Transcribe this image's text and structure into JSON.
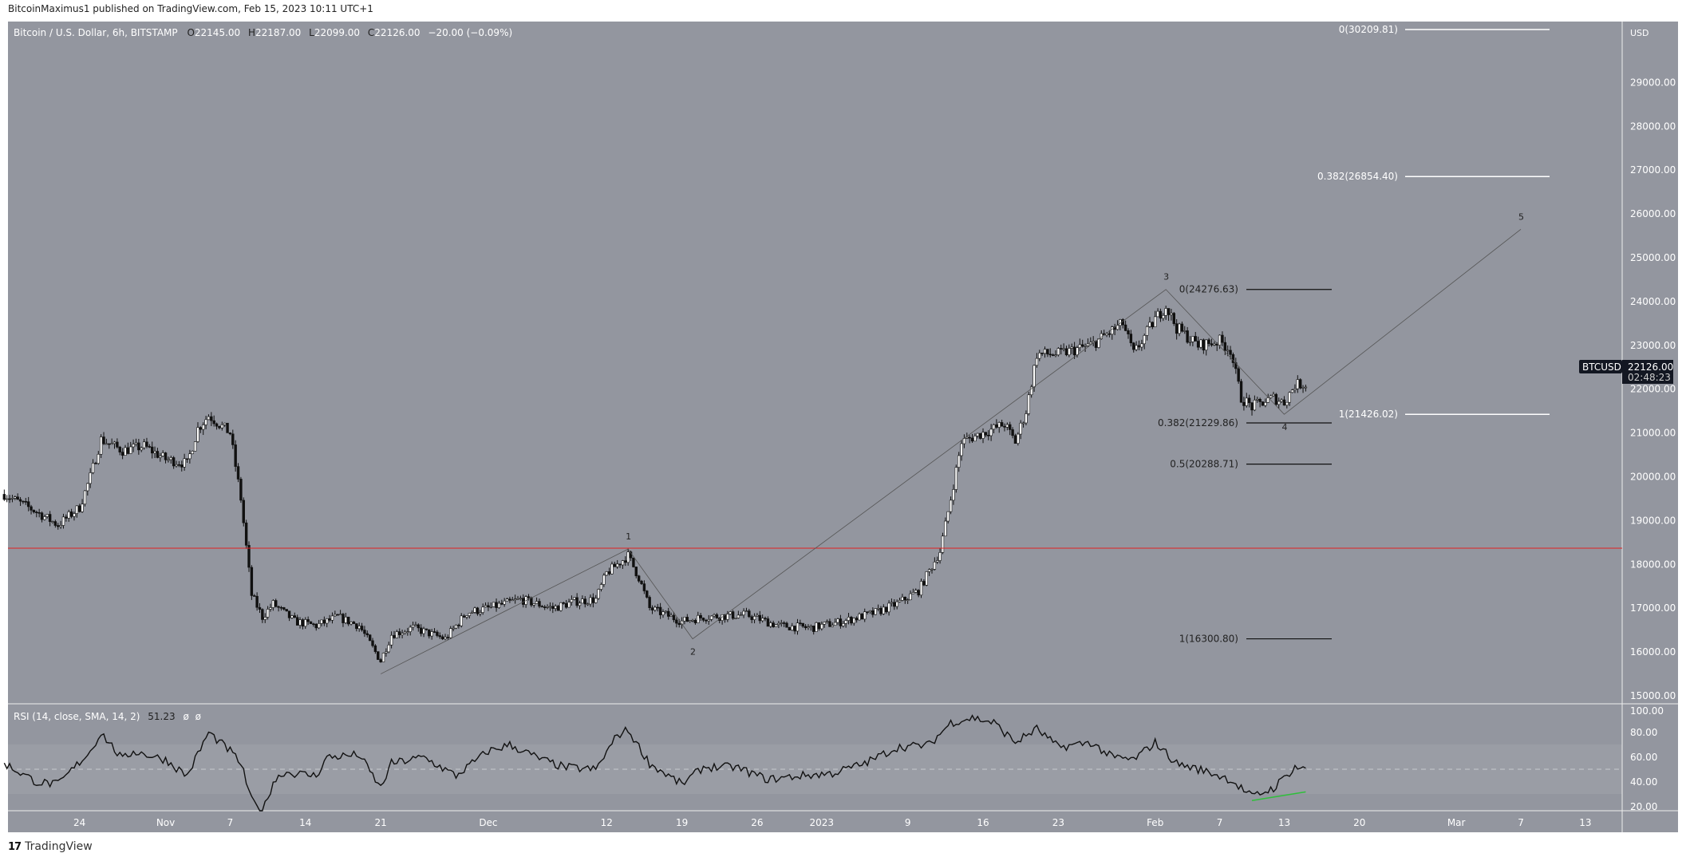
{
  "header": {
    "published": "BitcoinMaximus1 published on TradingView.com, Feb 15, 2023 10:11 UTC+1",
    "symbol_desc": "Bitcoin / U.S. Dollar, 6h, BITSTAMP",
    "ohlc": {
      "o_label": "O",
      "o": "22145.00",
      "h_label": "H",
      "h": "22187.00",
      "l_label": "L",
      "l": "22099.00",
      "c_label": "C",
      "c": "22126.00",
      "change": "−20.00 (−0.09%)"
    }
  },
  "price_axis": {
    "currency": "USD",
    "labels": [
      "29000.00",
      "28000.00",
      "27000.00",
      "26000.00",
      "25000.00",
      "24000.00",
      "23000.00",
      "22000.00",
      "21000.00",
      "20000.00",
      "19000.00",
      "18000.00",
      "17000.00",
      "16000.00",
      "15000.00"
    ],
    "label_values": [
      29000,
      28000,
      27000,
      26000,
      25000,
      24000,
      23000,
      22000,
      21000,
      20000,
      19000,
      18000,
      17000,
      16000,
      15000
    ]
  },
  "last_price": {
    "symbol": "BTCUSD",
    "price": "22126.00",
    "countdown": "02:48:23",
    "value": 22126
  },
  "rsi": {
    "legend": "RSI (14, close, SMA, 14, 2)",
    "value": "51.23",
    "extra1": "ø",
    "extra2": "ø",
    "labels": [
      "100.00",
      "80.00",
      "60.00",
      "40.00",
      "20.00"
    ],
    "label_values": [
      100,
      80,
      60,
      40,
      20
    ]
  },
  "time_axis": {
    "labels": [
      "24",
      "Nov",
      "7",
      "14",
      "21",
      "Dec",
      "12",
      "19",
      "26",
      "2023",
      "9",
      "16",
      "23",
      "Feb",
      "7",
      "13",
      "20",
      "Mar",
      "7",
      "13"
    ],
    "days": [
      0,
      8,
      14,
      21,
      28,
      38,
      49,
      56,
      63,
      69,
      77,
      84,
      91,
      100,
      106,
      112,
      119,
      128,
      134,
      140
    ]
  },
  "footer": {
    "brand": "TradingView"
  },
  "colors": {
    "pane": "#93969f",
    "rsi_band": "#9a9da5",
    "red_line": "#e02020",
    "divergence": "#2fbf3a",
    "axis_text": "#ffffff"
  },
  "chart_data": {
    "type": "candlestick",
    "title": "Bitcoin / U.S. Dollar, 6h, BITSTAMP",
    "x_unit": "days since Oct 24, 2022",
    "ylim": [
      15000,
      30500
    ],
    "price_path": [
      [
        -7,
        19600
      ],
      [
        -4,
        19200
      ],
      [
        -2,
        18900
      ],
      [
        0,
        19300
      ],
      [
        1,
        20000
      ],
      [
        2,
        20850
      ],
      [
        4,
        20600
      ],
      [
        6,
        20700
      ],
      [
        8,
        20400
      ],
      [
        10,
        20300
      ],
      [
        11,
        21100
      ],
      [
        12,
        21400
      ],
      [
        14,
        21000
      ],
      [
        15,
        19500
      ],
      [
        16,
        17300
      ],
      [
        17,
        16800
      ],
      [
        18,
        17100
      ],
      [
        20,
        16700
      ],
      [
        22,
        16600
      ],
      [
        24,
        16800
      ],
      [
        26,
        16600
      ],
      [
        28,
        15800
      ],
      [
        29,
        16400
      ],
      [
        31,
        16550
      ],
      [
        34,
        16300
      ],
      [
        36,
        16900
      ],
      [
        38,
        17000
      ],
      [
        41,
        17200
      ],
      [
        44,
        17000
      ],
      [
        46,
        17150
      ],
      [
        48,
        17200
      ],
      [
        49,
        17800
      ],
      [
        51,
        18200
      ],
      [
        52,
        17700
      ],
      [
        53,
        17000
      ],
      [
        56,
        16700
      ],
      [
        58,
        16800
      ],
      [
        62,
        16850
      ],
      [
        65,
        16600
      ],
      [
        68,
        16550
      ],
      [
        71,
        16700
      ],
      [
        74,
        16900
      ],
      [
        76,
        17100
      ],
      [
        78,
        17400
      ],
      [
        80,
        18300
      ],
      [
        81,
        19500
      ],
      [
        82,
        20800
      ],
      [
        84,
        21000
      ],
      [
        86,
        21200
      ],
      [
        87,
        20800
      ],
      [
        88,
        21500
      ],
      [
        89,
        22800
      ],
      [
        91,
        22800
      ],
      [
        94,
        23000
      ],
      [
        97,
        23500
      ],
      [
        98,
        22800
      ],
      [
        100,
        23600
      ],
      [
        101,
        23900
      ],
      [
        102,
        23400
      ],
      [
        104,
        23000
      ],
      [
        106,
        23100
      ],
      [
        107,
        22900
      ],
      [
        108,
        21800
      ],
      [
        109,
        21600
      ],
      [
        111,
        21800
      ],
      [
        112,
        21700
      ],
      [
        113,
        22100
      ],
      [
        114,
        22126
      ]
    ],
    "rsi_path": [
      [
        -7,
        55
      ],
      [
        -4,
        40
      ],
      [
        -2,
        38
      ],
      [
        1,
        65
      ],
      [
        2,
        80
      ],
      [
        4,
        58
      ],
      [
        5,
        65
      ],
      [
        8,
        58
      ],
      [
        10,
        45
      ],
      [
        12,
        80
      ],
      [
        14,
        65
      ],
      [
        15,
        55
      ],
      [
        16,
        25
      ],
      [
        17,
        15
      ],
      [
        18,
        40
      ],
      [
        19,
        48
      ],
      [
        22,
        45
      ],
      [
        23,
        60
      ],
      [
        26,
        62
      ],
      [
        28,
        35
      ],
      [
        29,
        55
      ],
      [
        32,
        60
      ],
      [
        35,
        45
      ],
      [
        38,
        65
      ],
      [
        40,
        70
      ],
      [
        43,
        58
      ],
      [
        45,
        52
      ],
      [
        48,
        50
      ],
      [
        50,
        78
      ],
      [
        51,
        82
      ],
      [
        53,
        55
      ],
      [
        56,
        38
      ],
      [
        58,
        52
      ],
      [
        61,
        52
      ],
      [
        64,
        42
      ],
      [
        67,
        45
      ],
      [
        70,
        47
      ],
      [
        73,
        55
      ],
      [
        76,
        68
      ],
      [
        79,
        70
      ],
      [
        81,
        88
      ],
      [
        83,
        92
      ],
      [
        85,
        88
      ],
      [
        87,
        72
      ],
      [
        89,
        83
      ],
      [
        91,
        68
      ],
      [
        94,
        72
      ],
      [
        96,
        60
      ],
      [
        98,
        58
      ],
      [
        100,
        72
      ],
      [
        102,
        55
      ],
      [
        105,
        48
      ],
      [
        107,
        42
      ],
      [
        109,
        28
      ],
      [
        111,
        35
      ],
      [
        113,
        52
      ],
      [
        114,
        51.23
      ]
    ],
    "red_level": 18370,
    "waves": [
      {
        "label": "1",
        "day": 51,
        "price": 18350
      },
      {
        "label": "2",
        "day": 57,
        "price": 16300
      },
      {
        "label": "3",
        "day": 101,
        "price": 24276
      },
      {
        "label": "4",
        "day": 112,
        "price": 21426
      },
      {
        "label": "5",
        "day": 134,
        "price": 25650
      }
    ],
    "wave_start": [
      28,
      15500
    ],
    "fib_left": [
      {
        "label": "0(24276.63)",
        "price": 24276.63
      },
      {
        "label": "0.382(21229.86)",
        "price": 21229.86
      },
      {
        "label": "0.5(20288.71)",
        "price": 20288.71
      },
      {
        "label": "1(16300.80)",
        "price": 16300.8
      }
    ],
    "fib_right": [
      {
        "label": "0(30209.81)",
        "price": 30209.81
      },
      {
        "label": "0.382(26854.40)",
        "price": 26854.4
      },
      {
        "label": "1(21426.02)",
        "price": 21426.02
      }
    ],
    "divergence": [
      [
        109,
        25
      ],
      [
        114,
        32
      ]
    ]
  }
}
